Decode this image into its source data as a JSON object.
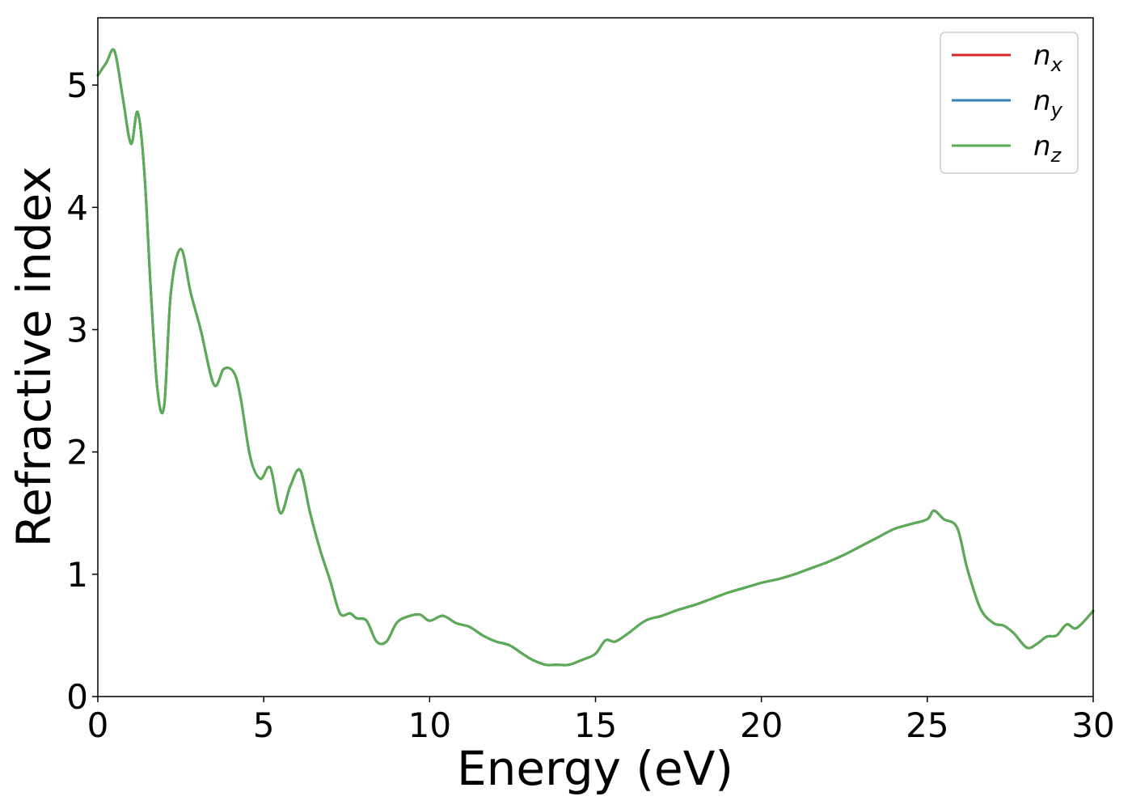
{
  "chart_data": {
    "type": "line",
    "title": "",
    "xlabel": "Energy (eV)",
    "ylabel": "Refractive index",
    "xlim": [
      0,
      30
    ],
    "ylim": [
      0,
      5.55
    ],
    "xticks": [
      0,
      5,
      10,
      15,
      20,
      25,
      30
    ],
    "yticks": [
      0,
      1,
      2,
      3,
      4,
      5
    ],
    "grid": false,
    "legend": "top-right",
    "series": [
      {
        "name": "n_x",
        "label_base": "n",
        "label_sub": "x",
        "color": "#d62728",
        "x": [
          0,
          0.25,
          0.5,
          0.75,
          1.0,
          1.2,
          1.4,
          1.6,
          1.8,
          2.0,
          2.2,
          2.5,
          2.8,
          3.1,
          3.5,
          3.8,
          4.1,
          4.3,
          4.6,
          4.9,
          5.2,
          5.5,
          5.8,
          6.1,
          6.4,
          6.7,
          7.0,
          7.3,
          7.6,
          7.8,
          8.1,
          8.4,
          8.7,
          9.0,
          9.3,
          9.7,
          10.0,
          10.4,
          10.8,
          11.2,
          11.6,
          12.0,
          12.4,
          12.8,
          13.1,
          13.5,
          13.8,
          14.2,
          14.6,
          15.0,
          15.3,
          15.6,
          16.0,
          16.5,
          17.0,
          17.5,
          18.0,
          18.5,
          19.0,
          19.5,
          20.0,
          20.5,
          21.0,
          21.5,
          22.0,
          22.5,
          23.0,
          23.5,
          24.0,
          24.5,
          25.0,
          25.2,
          25.5,
          25.9,
          26.2,
          26.6,
          27.0,
          27.3,
          27.6,
          28.0,
          28.3,
          28.6,
          28.9,
          29.2,
          29.5,
          30.0
        ],
        "y": [
          5.08,
          5.18,
          5.28,
          4.9,
          4.52,
          4.78,
          4.3,
          3.3,
          2.5,
          2.38,
          3.3,
          3.66,
          3.3,
          3.0,
          2.55,
          2.68,
          2.65,
          2.45,
          1.95,
          1.78,
          1.87,
          1.5,
          1.72,
          1.85,
          1.5,
          1.2,
          0.95,
          0.68,
          0.68,
          0.64,
          0.62,
          0.45,
          0.45,
          0.6,
          0.65,
          0.67,
          0.62,
          0.66,
          0.6,
          0.57,
          0.5,
          0.45,
          0.42,
          0.35,
          0.3,
          0.26,
          0.26,
          0.26,
          0.3,
          0.35,
          0.46,
          0.45,
          0.52,
          0.62,
          0.66,
          0.71,
          0.75,
          0.8,
          0.85,
          0.89,
          0.93,
          0.96,
          1.0,
          1.05,
          1.1,
          1.16,
          1.23,
          1.3,
          1.37,
          1.41,
          1.45,
          1.52,
          1.45,
          1.38,
          1.05,
          0.72,
          0.6,
          0.58,
          0.52,
          0.4,
          0.43,
          0.49,
          0.5,
          0.59,
          0.56,
          0.7
        ]
      },
      {
        "name": "n_y",
        "label_base": "n",
        "label_sub": "y",
        "color": "#3a7dbd",
        "x": [
          0,
          0.25,
          0.5,
          0.75,
          1.0,
          1.2,
          1.4,
          1.6,
          1.8,
          2.0,
          2.2,
          2.5,
          2.8,
          3.1,
          3.5,
          3.8,
          4.1,
          4.3,
          4.6,
          4.9,
          5.2,
          5.5,
          5.8,
          6.1,
          6.4,
          6.7,
          7.0,
          7.3,
          7.6,
          7.8,
          8.1,
          8.4,
          8.7,
          9.0,
          9.3,
          9.7,
          10.0,
          10.4,
          10.8,
          11.2,
          11.6,
          12.0,
          12.4,
          12.8,
          13.1,
          13.5,
          13.8,
          14.2,
          14.6,
          15.0,
          15.3,
          15.6,
          16.0,
          16.5,
          17.0,
          17.5,
          18.0,
          18.5,
          19.0,
          19.5,
          20.0,
          20.5,
          21.0,
          21.5,
          22.0,
          22.5,
          23.0,
          23.5,
          24.0,
          24.5,
          25.0,
          25.2,
          25.5,
          25.9,
          26.2,
          26.6,
          27.0,
          27.3,
          27.6,
          28.0,
          28.3,
          28.6,
          28.9,
          29.2,
          29.5,
          30.0
        ],
        "y": [
          5.08,
          5.18,
          5.28,
          4.9,
          4.52,
          4.78,
          4.3,
          3.3,
          2.5,
          2.38,
          3.3,
          3.66,
          3.3,
          3.0,
          2.55,
          2.68,
          2.65,
          2.45,
          1.95,
          1.78,
          1.87,
          1.5,
          1.72,
          1.85,
          1.5,
          1.2,
          0.95,
          0.68,
          0.68,
          0.64,
          0.62,
          0.45,
          0.45,
          0.6,
          0.65,
          0.67,
          0.62,
          0.66,
          0.6,
          0.57,
          0.5,
          0.45,
          0.42,
          0.35,
          0.3,
          0.26,
          0.26,
          0.26,
          0.3,
          0.35,
          0.46,
          0.45,
          0.52,
          0.62,
          0.66,
          0.71,
          0.75,
          0.8,
          0.85,
          0.89,
          0.93,
          0.96,
          1.0,
          1.05,
          1.1,
          1.16,
          1.23,
          1.3,
          1.37,
          1.41,
          1.45,
          1.52,
          1.45,
          1.38,
          1.05,
          0.72,
          0.6,
          0.58,
          0.52,
          0.4,
          0.43,
          0.49,
          0.5,
          0.59,
          0.56,
          0.7
        ]
      },
      {
        "name": "n_z",
        "label_base": "n",
        "label_sub": "z",
        "color": "#5aad54",
        "x": [
          0,
          0.25,
          0.5,
          0.75,
          1.0,
          1.2,
          1.4,
          1.6,
          1.8,
          2.0,
          2.2,
          2.5,
          2.8,
          3.1,
          3.5,
          3.8,
          4.1,
          4.3,
          4.6,
          4.9,
          5.2,
          5.5,
          5.8,
          6.1,
          6.4,
          6.7,
          7.0,
          7.3,
          7.6,
          7.8,
          8.1,
          8.4,
          8.7,
          9.0,
          9.3,
          9.7,
          10.0,
          10.4,
          10.8,
          11.2,
          11.6,
          12.0,
          12.4,
          12.8,
          13.1,
          13.5,
          13.8,
          14.2,
          14.6,
          15.0,
          15.3,
          15.6,
          16.0,
          16.5,
          17.0,
          17.5,
          18.0,
          18.5,
          19.0,
          19.5,
          20.0,
          20.5,
          21.0,
          21.5,
          22.0,
          22.5,
          23.0,
          23.5,
          24.0,
          24.5,
          25.0,
          25.2,
          25.5,
          25.9,
          26.2,
          26.6,
          27.0,
          27.3,
          27.6,
          28.0,
          28.3,
          28.6,
          28.9,
          29.2,
          29.5,
          30.0
        ],
        "y": [
          5.08,
          5.18,
          5.28,
          4.9,
          4.52,
          4.78,
          4.3,
          3.3,
          2.5,
          2.38,
          3.3,
          3.66,
          3.3,
          3.0,
          2.55,
          2.68,
          2.65,
          2.45,
          1.95,
          1.78,
          1.87,
          1.5,
          1.72,
          1.85,
          1.5,
          1.2,
          0.95,
          0.68,
          0.68,
          0.64,
          0.62,
          0.45,
          0.45,
          0.6,
          0.65,
          0.67,
          0.62,
          0.66,
          0.6,
          0.57,
          0.5,
          0.45,
          0.42,
          0.35,
          0.3,
          0.26,
          0.26,
          0.26,
          0.3,
          0.35,
          0.46,
          0.45,
          0.52,
          0.62,
          0.66,
          0.71,
          0.75,
          0.8,
          0.85,
          0.89,
          0.93,
          0.96,
          1.0,
          1.05,
          1.1,
          1.16,
          1.23,
          1.3,
          1.37,
          1.41,
          1.45,
          1.52,
          1.45,
          1.38,
          1.05,
          0.72,
          0.6,
          0.58,
          0.52,
          0.4,
          0.43,
          0.49,
          0.5,
          0.59,
          0.56,
          0.7
        ]
      }
    ]
  }
}
